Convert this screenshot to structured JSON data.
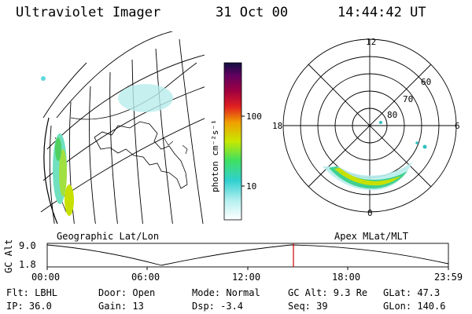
{
  "header": {
    "instrument": "Ultraviolet Imager",
    "date": "31 Oct 00",
    "time": "14:44:42 UT"
  },
  "colorbar": {
    "unit_label": "photon cm⁻²s⁻¹",
    "ticks": [
      "100",
      "10"
    ]
  },
  "geo_panel": {
    "label": "Geographic Lat/Lon"
  },
  "polar_panel": {
    "label": "Apex MLat/MLT",
    "mlt_labels": {
      "top": "12",
      "left": "18",
      "right": "6",
      "bottom": "0"
    },
    "lat_labels": [
      "60",
      "70",
      "80"
    ]
  },
  "timeline": {
    "ylabel": "GC Alt",
    "y_ticks": [
      "9.0",
      "1.8"
    ],
    "x_ticks": [
      "00:00",
      "06:00",
      "12:00",
      "18:00",
      "23:59"
    ],
    "current_time": "14:44"
  },
  "info": {
    "flt": "Flt: LBHL",
    "ip": "IP: 36.0",
    "door": "Door: Open",
    "gain": "Gain: 13",
    "mode": "Mode: Normal",
    "dsp": "Dsp:   -3.4",
    "gcalt": "GC Alt: 9.3 Re",
    "seq": "Seq: 39",
    "glat": "GLat:  47.3",
    "glon": "GLon: 140.6"
  },
  "colors": {
    "marker": "#cc0000",
    "aurora_core": "#c8e000",
    "aurora_mid": "#40d080",
    "aurora_faint": "#b0ecec"
  }
}
